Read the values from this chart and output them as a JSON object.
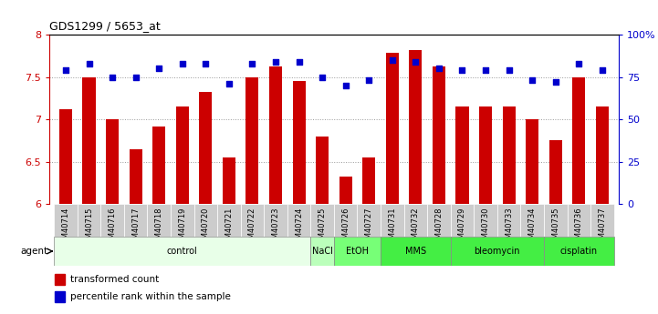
{
  "title": "GDS1299 / 5653_at",
  "categories": [
    "GSM40714",
    "GSM40715",
    "GSM40716",
    "GSM40717",
    "GSM40718",
    "GSM40719",
    "GSM40720",
    "GSM40721",
    "GSM40722",
    "GSM40723",
    "GSM40724",
    "GSM40725",
    "GSM40726",
    "GSM40727",
    "GSM40731",
    "GSM40732",
    "GSM40728",
    "GSM40729",
    "GSM40730",
    "GSM40733",
    "GSM40734",
    "GSM40735",
    "GSM40736",
    "GSM40737"
  ],
  "bar_values": [
    7.12,
    7.5,
    7.0,
    6.65,
    6.92,
    7.15,
    7.32,
    6.55,
    7.5,
    7.62,
    7.45,
    6.8,
    6.32,
    6.55,
    7.78,
    7.82,
    7.62,
    7.15,
    7.15,
    7.15,
    7.0,
    6.75,
    7.5,
    7.15
  ],
  "dot_values": [
    79,
    83,
    75,
    75,
    80,
    83,
    83,
    71,
    83,
    84,
    84,
    75,
    70,
    73,
    85,
    84,
    80,
    79,
    79,
    79,
    73,
    72,
    83,
    79
  ],
  "ylim_left": [
    6,
    8
  ],
  "ylim_right": [
    0,
    100
  ],
  "yticks_left": [
    6,
    6.5,
    7,
    7.5,
    8
  ],
  "yticks_right": [
    0,
    25,
    50,
    75,
    100
  ],
  "ytick_labels_right": [
    "0",
    "25",
    "50",
    "75",
    "100%"
  ],
  "bar_color": "#cc0000",
  "dot_color": "#0000cc",
  "bar_bottom": 6,
  "agent_group_spans": [
    {
      "label": "control",
      "start": 0,
      "end": 11,
      "color": "#e8ffe8"
    },
    {
      "label": "NaCl",
      "start": 11,
      "end": 12,
      "color": "#bbffbb"
    },
    {
      "label": "EtOH",
      "start": 12,
      "end": 14,
      "color": "#77ff77"
    },
    {
      "label": "MMS",
      "start": 14,
      "end": 17,
      "color": "#44ee44"
    },
    {
      "label": "bleomycin",
      "start": 17,
      "end": 21,
      "color": "#44ee44"
    },
    {
      "label": "cisplatin",
      "start": 21,
      "end": 24,
      "color": "#44ee44"
    }
  ],
  "legend_bar_label": "transformed count",
  "legend_dot_label": "percentile rank within the sample",
  "grid_yticks": [
    6.5,
    7.0,
    7.5
  ],
  "background_color": "#ffffff",
  "agent_label": "agent"
}
